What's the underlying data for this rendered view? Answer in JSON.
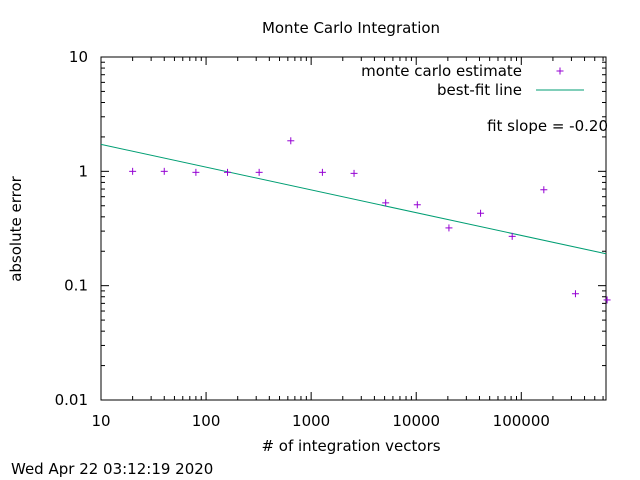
{
  "chart_data": {
    "type": "scatter",
    "title": "Monte Carlo Integration",
    "xlabel": "# of integration vectors",
    "ylabel": "absolute error",
    "x_scale": "log",
    "y_scale": "log",
    "xlim": [
      10,
      640000
    ],
    "ylim": [
      0.01,
      10
    ],
    "x_ticks": [
      {
        "value": 10,
        "label": "10"
      },
      {
        "value": 100,
        "label": "100"
      },
      {
        "value": 1000,
        "label": "1000"
      },
      {
        "value": 10000,
        "label": "10000"
      },
      {
        "value": 100000,
        "label": "100000"
      }
    ],
    "y_ticks": [
      {
        "value": 0.01,
        "label": "0.01"
      },
      {
        "value": 0.1,
        "label": "0.1"
      },
      {
        "value": 1,
        "label": "1"
      },
      {
        "value": 10,
        "label": "10"
      }
    ],
    "grid": false,
    "legend_position": "top-right",
    "series": [
      {
        "name": "monte carlo estimate",
        "type": "scatter",
        "marker": "+",
        "color": "#9400d3",
        "x": [
          20,
          40,
          80,
          160,
          320,
          640,
          1280,
          2560,
          5120,
          10240,
          20480,
          40960,
          81920,
          163840,
          327680,
          655360
        ],
        "y": [
          1.0,
          1.0,
          0.98,
          0.98,
          0.98,
          1.85,
          0.98,
          0.96,
          0.53,
          0.51,
          0.32,
          0.43,
          0.27,
          0.69,
          0.085,
          0.075
        ]
      },
      {
        "name": "best-fit line",
        "type": "line",
        "color": "#009e73",
        "x": [
          10,
          640000
        ],
        "y": [
          1.72,
          0.19
        ]
      }
    ],
    "annotations": [
      {
        "text": "fit slope = -0.20"
      }
    ]
  },
  "footer": {
    "timestamp": "Wed Apr 22 03:12:19 2020"
  }
}
